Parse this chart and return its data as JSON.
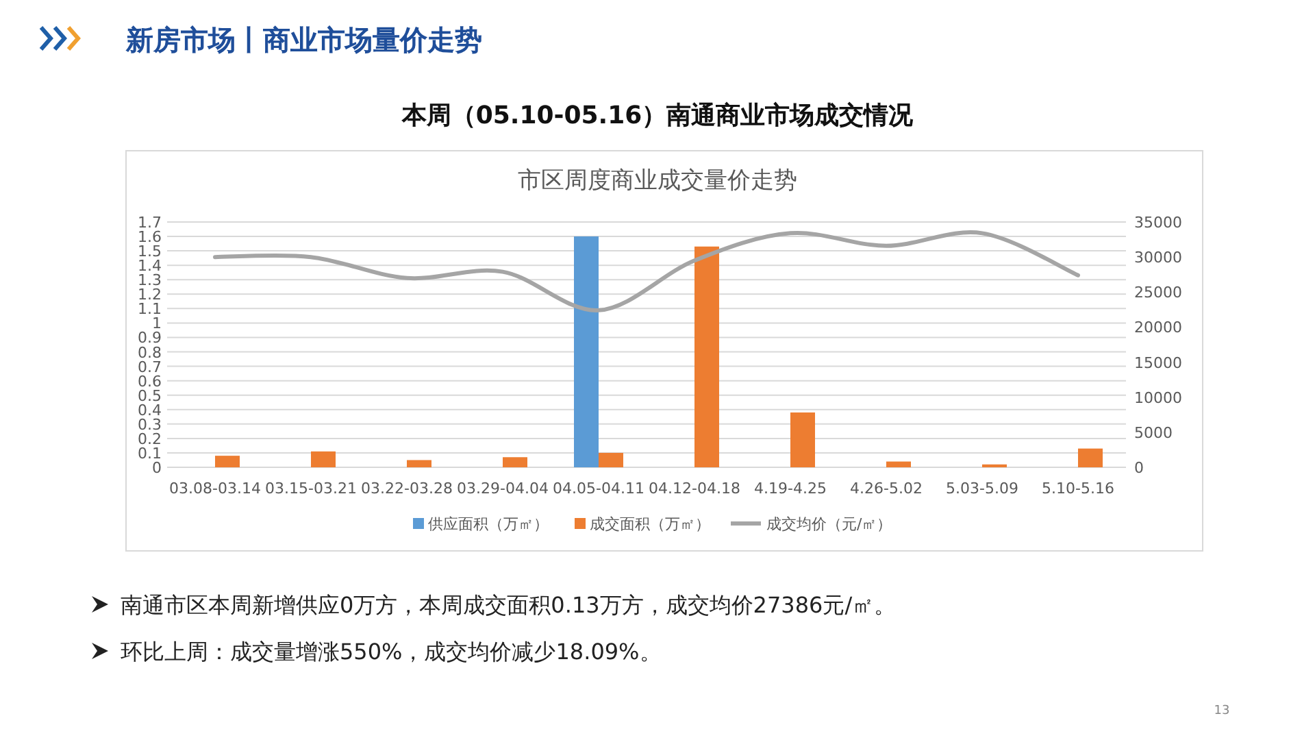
{
  "chart_data": {
    "type": "bar",
    "title": "市区周度商业成交量价走势",
    "annotations": [
      "新房市场丨商业市场量价走势",
      "本周（05.10-05.16）南通商业市场成交情况",
      "南通市区本周新增供应0万方，本周成交面积0.13万方，成交均价27386元/㎡。",
      "环比上周：成交量增涨550%，成交均价减少18.09%。",
      "13"
    ],
    "categories": [
      "03.08-03.14",
      "03.15-03.21",
      "03.22-03.28",
      "03.29-04.04",
      "04.05-04.11",
      "04.12-04.18",
      "4.19-4.25",
      "4.26-5.02",
      "5.03-5.09",
      "5.10-5.16"
    ],
    "series": [
      {
        "name": "供应面积（万㎡）",
        "color": "#5b9bd5",
        "values": [
          0,
          0,
          0,
          0,
          1.6,
          0,
          0,
          0,
          0,
          0
        ]
      },
      {
        "name": "成交面积（万㎡）",
        "color": "#ed7d31",
        "values": [
          0.08,
          0.11,
          0.05,
          0.07,
          0.1,
          1.53,
          0.38,
          0.04,
          0.02,
          0.13
        ]
      },
      {
        "name": "成交均价（元/㎡）",
        "color": "#a5a5a5",
        "type": "line",
        "axis": "y2",
        "values": [
          30000,
          30000,
          27000,
          27900,
          22400,
          29500,
          33400,
          31600,
          33400,
          27400
        ]
      }
    ],
    "ylim": [
      0,
      1.7
    ],
    "yticks": [
      0,
      0.1,
      0.2,
      0.3,
      0.4,
      0.5,
      0.6,
      0.7,
      0.8,
      0.9,
      1,
      1.1,
      1.2,
      1.3,
      1.4,
      1.5,
      1.6,
      1.7
    ],
    "y2lim": [
      0,
      35000
    ],
    "y2ticks": [
      0,
      5000,
      10000,
      15000,
      20000,
      25000,
      30000,
      35000
    ],
    "grid": "y",
    "legend": "bottom",
    "marker": "none",
    "line_style": "solid"
  }
}
